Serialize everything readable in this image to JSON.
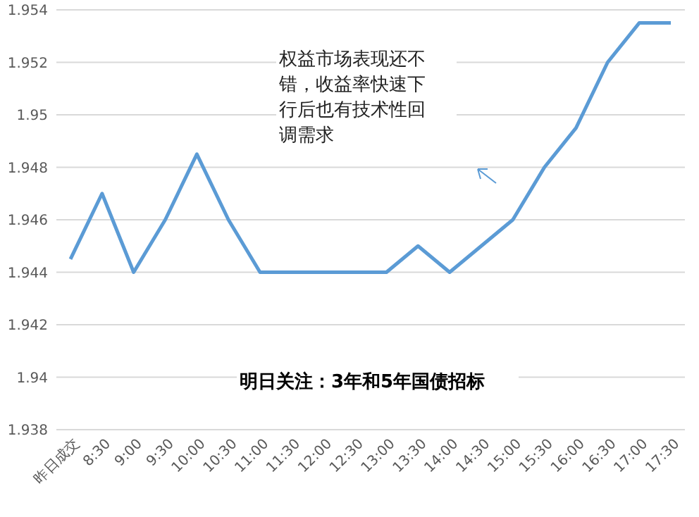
{
  "chart_data": {
    "type": "line",
    "categories": [
      "昨日成交",
      "8:30",
      "9:00",
      "9:30",
      "10:00",
      "10:30",
      "11:00",
      "11:30",
      "12:00",
      "12:30",
      "13:00",
      "13:30",
      "14:00",
      "14:30",
      "15:00",
      "15:30",
      "16:00",
      "16:30",
      "17:00",
      "17:30"
    ],
    "series": [
      {
        "color": "#5b9bd5",
        "values": [
          1.9445,
          1.947,
          1.944,
          1.946,
          1.9485,
          1.946,
          1.944,
          1.944,
          1.944,
          1.944,
          1.944,
          1.945,
          1.944,
          1.945,
          1.946,
          1.948,
          1.9495,
          1.952,
          1.9535,
          1.9535
        ]
      }
    ],
    "ylim": [
      1.938,
      1.954
    ],
    "yticks": [
      1.938,
      1.94,
      1.942,
      1.944,
      1.946,
      1.948,
      1.95,
      1.952,
      1.954
    ],
    "grid": "y",
    "marker": "none",
    "line_style": "solid",
    "annotations": [
      "权益市场表现还不错，收益率快速下行后也有技术性回调需求",
      "明日关注：3年和5年国债招标"
    ]
  }
}
